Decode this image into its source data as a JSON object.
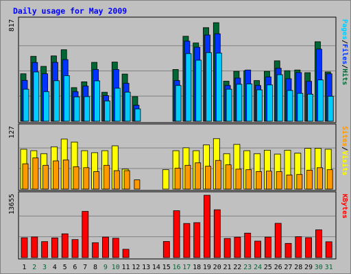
{
  "title": "Daily usage for May 2009",
  "colors": {
    "frame": "#c0c0c0",
    "border": "#000000",
    "plot_bg": "#c0c0c0",
    "title": "#0000ff",
    "hits": "#006633",
    "files": "#0033ff",
    "pages": "#00ccff",
    "visits": "#ffff00",
    "sites": "#ff9900",
    "kbytes": "#ff0000",
    "weekday": "#000000",
    "weekend": "#006633"
  },
  "chart_data": {
    "type": "bar",
    "categories": [
      "1",
      "2",
      "3",
      "4",
      "5",
      "6",
      "7",
      "8",
      "9",
      "10",
      "11",
      "12",
      "13",
      "14",
      "15",
      "16",
      "17",
      "18",
      "19",
      "20",
      "21",
      "22",
      "23",
      "24",
      "25",
      "26",
      "27",
      "28",
      "29",
      "30",
      "31"
    ],
    "weekend_days": [
      2,
      3,
      9,
      10,
      16,
      17,
      23,
      24,
      30,
      31
    ],
    "grid": true,
    "panels": [
      {
        "ylabel_max": "817",
        "ymax": 817,
        "legend": [
          "Pages",
          "/",
          "Files",
          "/",
          "Hits"
        ],
        "series": [
          {
            "name": "Hits",
            "values": [
              385,
              527,
              445,
              530,
              580,
              273,
              320,
              478,
              235,
              480,
              383,
              200,
              0,
              0,
              0,
              420,
              690,
              635,
              760,
              800,
              325,
              405,
              410,
              330,
              405,
              490,
              410,
              416,
              394,
              645,
              400
            ]
          },
          {
            "name": "Files",
            "values": [
              332,
              477,
              385,
              478,
              500,
              240,
              285,
              420,
              208,
              420,
              308,
              130,
              0,
              0,
              0,
              330,
              650,
              600,
              700,
              710,
              290,
              350,
              416,
              290,
              360,
              430,
              345,
              395,
              324,
              585,
              385
            ]
          },
          {
            "name": "Pages",
            "values": [
              260,
              400,
              240,
              329,
              370,
              198,
              200,
              328,
              165,
              268,
              236,
              100,
              0,
              0,
              0,
              290,
              549,
              495,
              557,
              553,
              260,
              300,
              303,
              255,
              295,
              378,
              250,
              227,
              220,
              335,
              203
            ]
          }
        ]
      },
      {
        "ylabel_max": "127",
        "ymax": 127,
        "legend": [
          "Sites",
          "/",
          "Visits"
        ],
        "series": [
          {
            "name": "Visits",
            "values": [
              82,
              79,
              73,
              87,
              103,
              97,
              79,
              75,
              79,
              89,
              41,
              0,
              0,
              0,
              40,
              79,
              85,
              79,
              91,
              104,
              73,
              92,
              79,
              73,
              80,
              72,
              80,
              74,
              84,
              84,
              82
            ]
          },
          {
            "name": "Sites",
            "values": [
              52,
              64,
              49,
              58,
              60,
              46,
              44,
              36,
              49,
              38,
              38,
              19,
              0,
              0,
              0,
              43,
              49,
              54,
              47,
              59,
              50,
              41,
              40,
              36,
              37,
              36,
              29,
              30,
              39,
              44,
              40
            ]
          }
        ]
      },
      {
        "ylabel_max": "13655",
        "ymax": 13655,
        "legend": [
          "KBytes"
        ],
        "series": [
          {
            "name": "KBytes",
            "values": [
              4340,
              4515,
              3503,
              4310,
              5204,
              3940,
              10110,
              3250,
              4480,
              4230,
              1823,
              0,
              0,
              0,
              3520,
              10270,
              7470,
              7660,
              13655,
              10480,
              4180,
              4469,
              5364,
              3600,
              4480,
              7500,
              3100,
              4570,
              4350,
              6080,
              3460
            ]
          }
        ]
      }
    ]
  }
}
